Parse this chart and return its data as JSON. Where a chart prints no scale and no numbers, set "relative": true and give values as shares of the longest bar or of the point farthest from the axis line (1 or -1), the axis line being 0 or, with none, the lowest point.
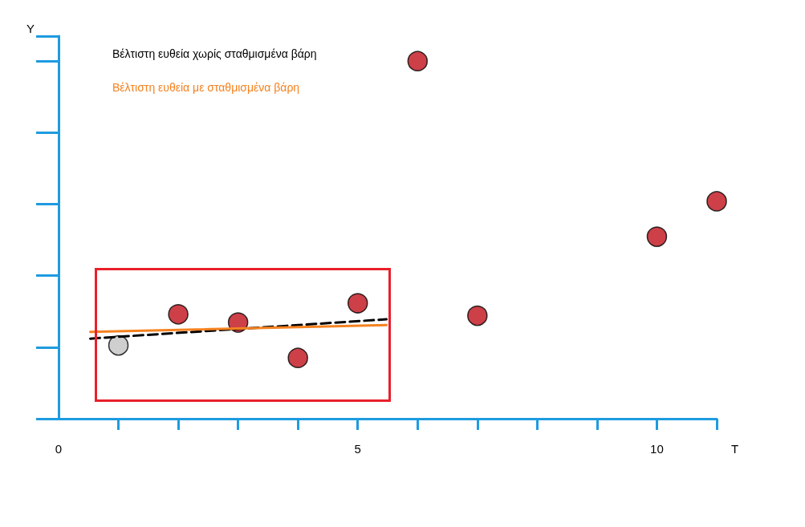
{
  "chart_data": {
    "type": "scatter",
    "xlabel": "T",
    "ylabel": "Y",
    "relative": true,
    "xlim": [
      0,
      11
    ],
    "xticks": [
      0,
      {
        "value": 1,
        "label": null
      },
      {
        "value": 2,
        "label": null
      },
      {
        "value": 3,
        "label": null
      },
      {
        "value": 4,
        "label": null
      },
      5,
      {
        "value": 6,
        "label": null
      },
      {
        "value": 7,
        "label": null
      },
      {
        "value": 8,
        "label": null
      },
      {
        "value": 9,
        "label": null
      },
      10,
      {
        "value": 11,
        "label": null
      }
    ],
    "grid": false,
    "legend": "top left",
    "marker": "circle",
    "series": [
      {
        "x": [
          1,
          2,
          3,
          4,
          5,
          6,
          7,
          10,
          11
        ],
        "values": [
          0.205,
          0.292,
          0.269,
          0.17,
          0.323,
          1,
          0.288,
          0.509,
          0.608
        ],
        "colors": [
          "#c3c3c3",
          "#c0101a",
          "#c0101a",
          "#c0101a",
          "#c0101a",
          "#c0101a",
          "#c0101a",
          "#c0101a",
          "#c0101a"
        ]
      },
      {
        "type": "line",
        "name": "Βέλτιστη ευθεία χωρίς σταθμισμένα βάρη",
        "color": "#000000",
        "line_style": "dashed",
        "marker": "none",
        "x": [
          0.53,
          5.48
        ],
        "values": [
          0.224,
          0.278
        ]
      },
      {
        "type": "line",
        "name": "Βέλτιστη ευθεία με σταθμισμένα βάρη",
        "color": "#f58220",
        "line_style": "solid",
        "marker": "none",
        "x": [
          0.53,
          5.48
        ],
        "values": [
          0.243,
          0.262
        ]
      }
    ]
  }
}
